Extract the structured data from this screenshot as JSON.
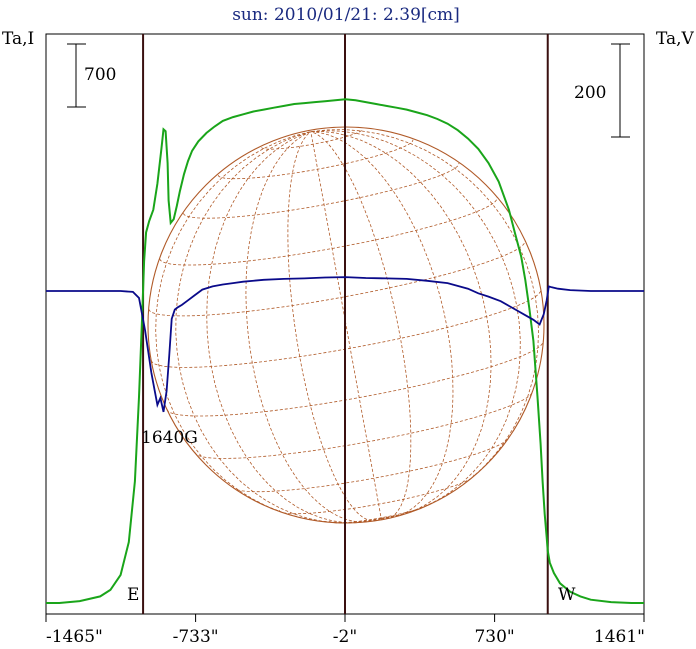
{
  "chart_data": {
    "type": "line",
    "title": "sun: 2010/01/21: 2.39[cm]",
    "left_axis_label": "Ta,I",
    "right_axis_label": "Ta,V",
    "left_scale_bar": "700",
    "right_scale_bar": "200",
    "x_tick_labels": [
      "-1465\"",
      "-733\"",
      "-2\"",
      "730\"",
      "1461\""
    ],
    "x_ticks": [
      -1465,
      -733,
      -2,
      730,
      1461
    ],
    "xlim": [
      -1465,
      1461
    ],
    "limb_markers": [
      -990,
      990
    ],
    "east_label": "E",
    "west_label": "W",
    "annotation": "1640G",
    "colors": {
      "title": "#1a2a80",
      "intensity": "#1aa51a",
      "polarization": "#0a0a8a",
      "disk": "#b05a28",
      "markers": "#3a1010"
    },
    "series": [
      {
        "x": [
          -1465,
          -1400,
          -1300,
          -1200,
          -1150,
          -1100,
          -1060,
          -1030,
          -1010,
          -995,
          -985,
          -975,
          -960,
          -940,
          -920,
          -900,
          -890,
          -880,
          -870,
          -865,
          -855,
          -840,
          -825,
          -810,
          -790,
          -770,
          -750,
          -720,
          -680,
          -640,
          -600,
          -550,
          -500,
          -450,
          -400,
          -350,
          -300,
          -250,
          -200,
          -150,
          -100,
          -50,
          0,
          50,
          100,
          150,
          200,
          250,
          300,
          350,
          400,
          450,
          500,
          550,
          600,
          650,
          700,
          750,
          800,
          830,
          860,
          880,
          900,
          920,
          940,
          955,
          965,
          975,
          985,
          990,
          1000,
          1020,
          1050,
          1100,
          1150,
          1200,
          1300,
          1400,
          1461
        ],
        "y": [
          0,
          0,
          20,
          70,
          140,
          300,
          650,
          1300,
          2200,
          3050,
          3650,
          3960,
          4080,
          4200,
          4480,
          4860,
          5060,
          5040,
          4700,
          4300,
          4060,
          4100,
          4240,
          4400,
          4580,
          4720,
          4830,
          4930,
          5020,
          5090,
          5150,
          5190,
          5220,
          5250,
          5270,
          5290,
          5310,
          5330,
          5340,
          5350,
          5360,
          5370,
          5380,
          5370,
          5350,
          5330,
          5310,
          5290,
          5270,
          5240,
          5210,
          5170,
          5120,
          5050,
          4960,
          4850,
          4700,
          4500,
          4200,
          3950,
          3700,
          3450,
          3150,
          2800,
          2200,
          1700,
          1300,
          950,
          700,
          560,
          430,
          320,
          210,
          120,
          70,
          35,
          10,
          0,
          0
        ],
        "unit_note": ""
      },
      {
        "x": [
          -1465,
          -1400,
          -1300,
          -1200,
          -1100,
          -1040,
          -1010,
          -995,
          -980,
          -965,
          -950,
          -935,
          -920,
          -905,
          -890,
          -875,
          -862,
          -850,
          -835,
          -820,
          -800,
          -770,
          -740,
          -700,
          -650,
          -600,
          -550,
          -500,
          -400,
          -300,
          -200,
          -100,
          0,
          100,
          200,
          300,
          400,
          500,
          600,
          650,
          700,
          760,
          800,
          840,
          880,
          920,
          950,
          970,
          985,
          995,
          1010,
          1040,
          1100,
          1200,
          1300,
          1400,
          1461
        ],
        "y": [
          0,
          0,
          0,
          0,
          0,
          -2,
          -15,
          -50,
          -85,
          -130,
          -175,
          -210,
          -245,
          -230,
          -260,
          -215,
          -140,
          -60,
          -40,
          -35,
          -30,
          -20,
          -10,
          3,
          10,
          14,
          17,
          20,
          24,
          26,
          27,
          29,
          30,
          28,
          27,
          26,
          22,
          17,
          5,
          -5,
          -12,
          -22,
          -32,
          -42,
          -52,
          -62,
          -72,
          -50,
          -20,
          10,
          8,
          5,
          2,
          0,
          0,
          0,
          0
        ]
      }
    ],
    "ylim_intensity": [
      0,
      5800
    ],
    "ylim_polarization": [
      -330,
      330
    ]
  }
}
